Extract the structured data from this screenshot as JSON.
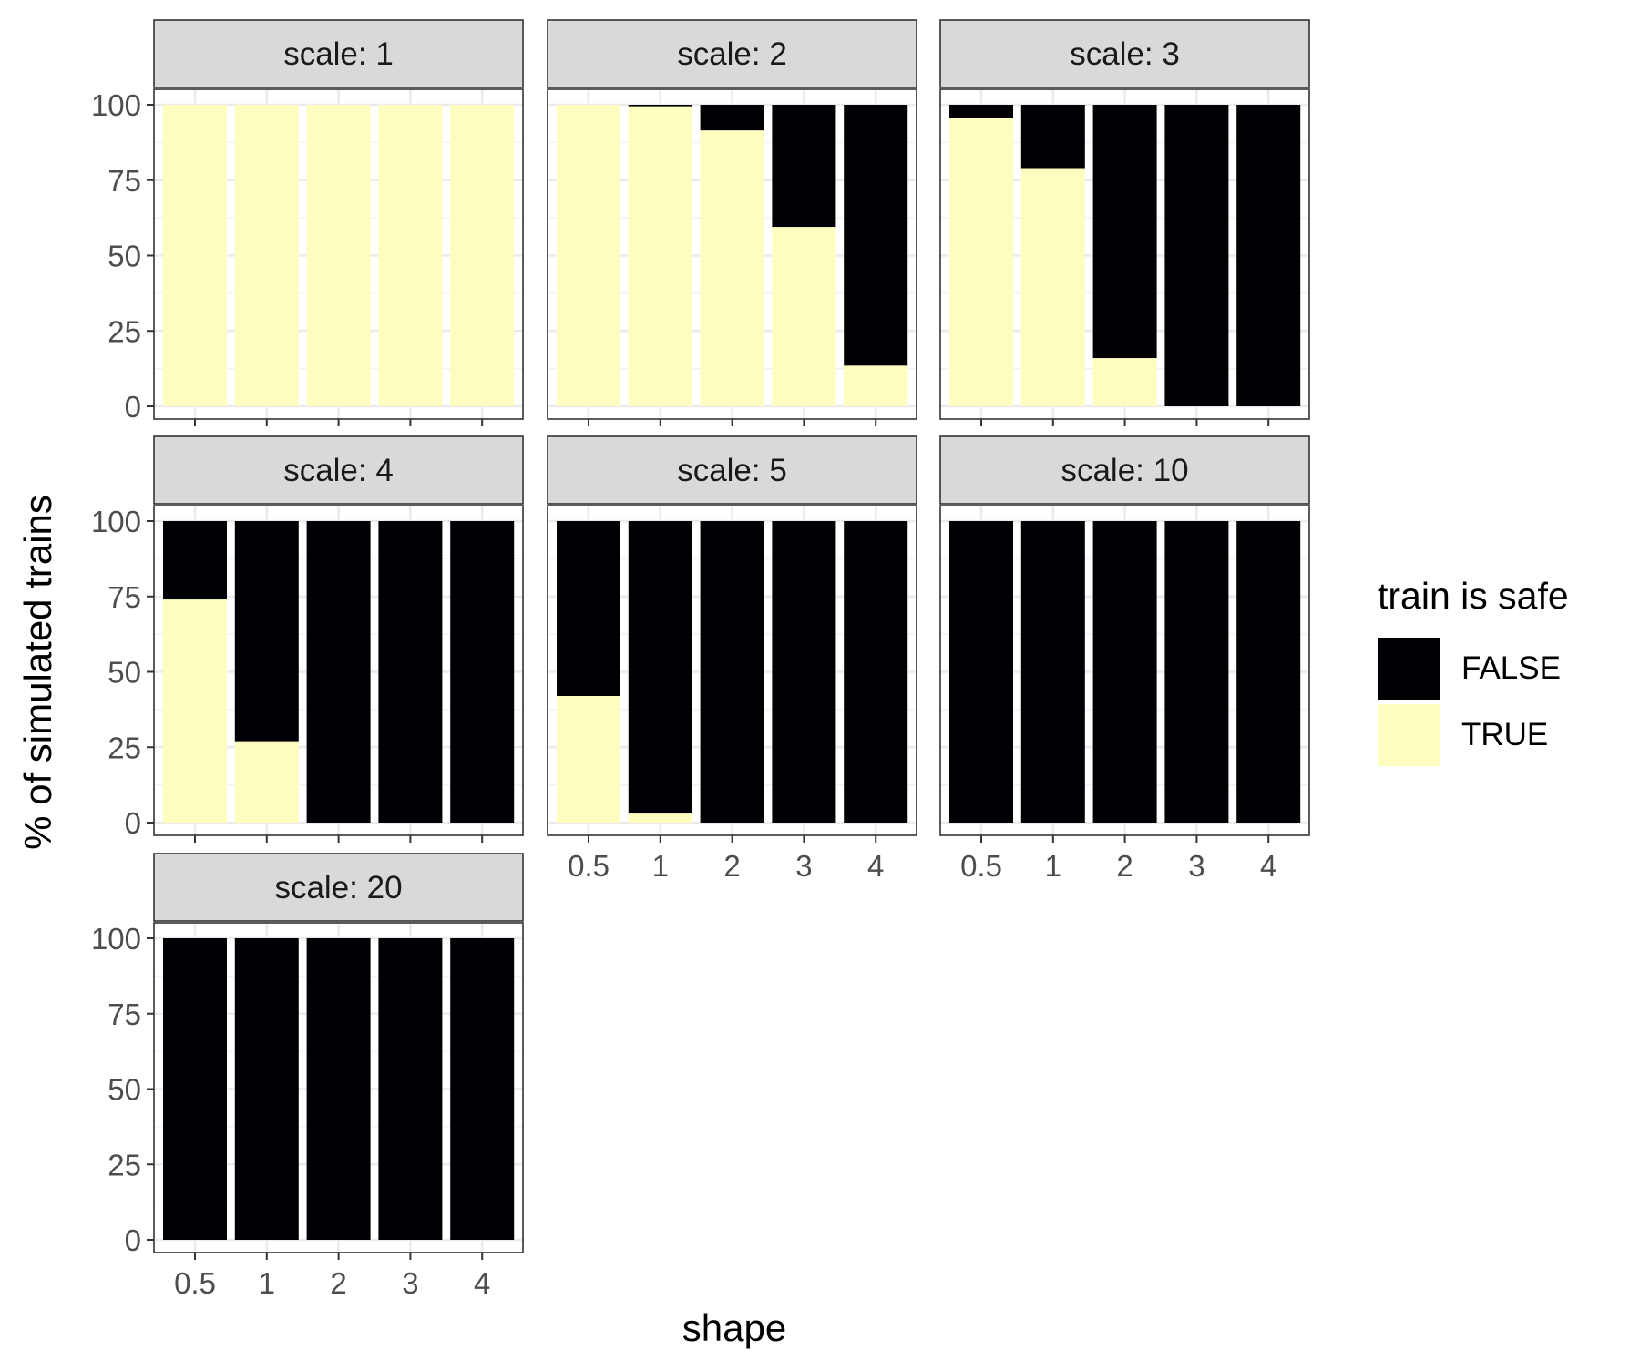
{
  "chart_data": {
    "type": "bar",
    "stacked": true,
    "facet_prefix": "scale: ",
    "categories": [
      "0.5",
      "1",
      "2",
      "3",
      "4"
    ],
    "xlabel": "shape",
    "ylabel": "% of simulated trains",
    "ylim": [
      0,
      100
    ],
    "yticks": [
      0,
      25,
      50,
      75,
      100
    ],
    "grid": true,
    "legend": {
      "title": "train is safe",
      "position": "right",
      "items": [
        {
          "label": "FALSE",
          "color": "#000004"
        },
        {
          "label": "TRUE",
          "color": "#FCFDBF"
        }
      ]
    },
    "colors": {
      "FALSE": "#000004",
      "TRUE": "#FCFDBF"
    },
    "panels": [
      {
        "scale": "1",
        "true_pct": [
          100,
          100,
          100,
          100,
          100
        ]
      },
      {
        "scale": "2",
        "true_pct": [
          100,
          99.5,
          91.5,
          59.5,
          13.5
        ]
      },
      {
        "scale": "3",
        "true_pct": [
          95.5,
          79,
          16,
          0,
          0
        ]
      },
      {
        "scale": "4",
        "true_pct": [
          74,
          27,
          0,
          0,
          0
        ]
      },
      {
        "scale": "5",
        "true_pct": [
          42,
          3,
          0,
          0,
          0
        ]
      },
      {
        "scale": "10",
        "true_pct": [
          0,
          0,
          0,
          0,
          0
        ]
      },
      {
        "scale": "20",
        "true_pct": [
          0,
          0,
          0,
          0,
          0
        ]
      }
    ]
  }
}
